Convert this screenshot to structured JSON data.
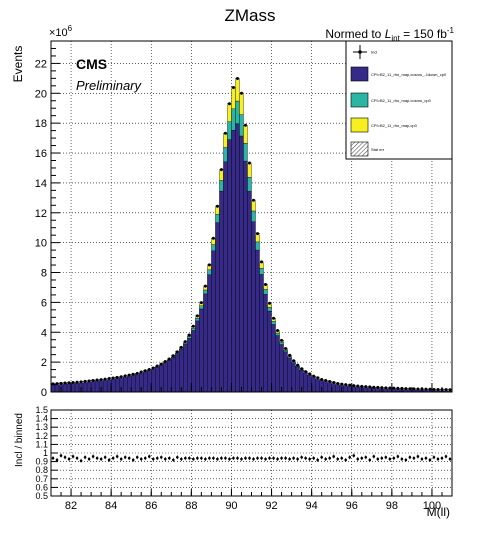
{
  "title": "ZMass",
  "lumi_label": {
    "prefix": "Normed to ",
    "L": "L",
    "sub": "int",
    "suffix": " = 150 fb",
    "sup": "-1"
  },
  "cms_label": "CMS",
  "preliminary_label": "Preliminary",
  "colors": {
    "navy": "#352a87",
    "teal": "#2bb5a4",
    "yellow": "#f7ef20",
    "grey": "#9a9a9a"
  },
  "chart_data": [
    {
      "type": "bar",
      "stacked": true,
      "ylabel": "Events",
      "y_multiplier": "×10",
      "y_multiplier_exp": "6",
      "xlim": [
        81,
        101
      ],
      "ylim": [
        0,
        23.5
      ],
      "grid": true,
      "legend_position": "top-right",
      "x_ticks": [
        "82",
        "84",
        "86",
        "88",
        "90",
        "92",
        "94",
        "96",
        "98",
        "100"
      ],
      "y_ticks": [
        "0",
        "2",
        "4",
        "6",
        "8",
        "10",
        "12",
        "14",
        "16",
        "18",
        "20",
        "22"
      ],
      "legend": [
        {
          "label": "Incl",
          "marker": "point"
        },
        {
          "label": "CPI=B2_11_rho_map,cosmu_-1down_cp0",
          "color": "#352a87"
        },
        {
          "label": "CPI=B2_11_rho_map,cosmu_cp0",
          "color": "#2bb5a4"
        },
        {
          "label": "CPI=B2_11_rho_map,cp0",
          "color": "#f7ef20"
        },
        {
          "label": "Stat err",
          "marker": "hatch"
        }
      ],
      "bin_width": 0.2,
      "x_centers": [
        81.1,
        81.3,
        81.5,
        81.7,
        81.9,
        82.1,
        82.3,
        82.5,
        82.7,
        82.9,
        83.1,
        83.3,
        83.5,
        83.7,
        83.9,
        84.1,
        84.3,
        84.5,
        84.7,
        84.9,
        85.1,
        85.3,
        85.5,
        85.7,
        85.9,
        86.1,
        86.3,
        86.5,
        86.7,
        86.9,
        87.1,
        87.3,
        87.5,
        87.7,
        87.9,
        88.1,
        88.3,
        88.5,
        88.7,
        88.9,
        89.1,
        89.3,
        89.5,
        89.7,
        89.9,
        90.1,
        90.3,
        90.5,
        90.7,
        90.9,
        91.1,
        91.3,
        91.5,
        91.7,
        91.9,
        92.1,
        92.3,
        92.5,
        92.7,
        92.9,
        93.1,
        93.3,
        93.5,
        93.7,
        93.9,
        94.1,
        94.3,
        94.5,
        94.7,
        94.9,
        95.1,
        95.3,
        95.5,
        95.7,
        95.9,
        96.1,
        96.3,
        96.5,
        96.7,
        96.9,
        97.1,
        97.3,
        97.5,
        97.7,
        97.9,
        98.1,
        98.3,
        98.5,
        98.7,
        98.9,
        99.1,
        99.3,
        99.5,
        99.7,
        99.9,
        100.1,
        100.3,
        100.5,
        100.7,
        100.9
      ],
      "series": [
        {
          "name": "CPI=B2_11_rho_map,cosmu_-1down_cp0",
          "values": [
            0.52,
            0.54,
            0.56,
            0.58,
            0.6,
            0.62,
            0.64,
            0.66,
            0.69,
            0.72,
            0.75,
            0.78,
            0.81,
            0.84,
            0.88,
            0.92,
            0.96,
            1.0,
            1.06,
            1.11,
            1.17,
            1.23,
            1.3,
            1.38,
            1.47,
            1.57,
            1.68,
            1.81,
            1.96,
            2.13,
            2.33,
            2.57,
            2.85,
            3.19,
            3.6,
            4.12,
            4.76,
            5.56,
            6.57,
            7.85,
            9.45,
            11.34,
            13.45,
            15.42,
            16.9,
            17.53,
            17.97,
            17.14,
            15.46,
            13.43,
            11.4,
            9.5,
            7.87,
            6.54,
            5.42,
            4.52,
            3.78,
            3.18,
            2.69,
            2.28,
            1.95,
            1.68,
            1.46,
            1.28,
            1.13,
            1.0,
            0.89,
            0.8,
            0.73,
            0.66,
            0.6,
            0.55,
            0.51,
            0.47,
            0.44,
            0.41,
            0.38,
            0.36,
            0.34,
            0.32,
            0.3,
            0.29,
            0.27,
            0.26,
            0.25,
            0.24,
            0.23,
            0.22,
            0.21,
            0.2,
            0.19,
            0.18,
            0.18,
            0.17,
            0.16,
            0.15,
            0.15,
            0.14,
            0.14,
            0.13
          ]
        },
        {
          "name": "CPI=B2_11_rho_map,cosmu_cp0",
          "values": [
            0.01,
            0.01,
            0.01,
            0.01,
            0.01,
            0.01,
            0.01,
            0.01,
            0.01,
            0.01,
            0.01,
            0.01,
            0.01,
            0.01,
            0.01,
            0.01,
            0.01,
            0.01,
            0.01,
            0.01,
            0.01,
            0.01,
            0.02,
            0.02,
            0.02,
            0.02,
            0.03,
            0.03,
            0.04,
            0.04,
            0.05,
            0.06,
            0.07,
            0.09,
            0.11,
            0.14,
            0.17,
            0.21,
            0.26,
            0.33,
            0.42,
            0.55,
            0.72,
            0.95,
            1.2,
            1.43,
            1.51,
            1.43,
            1.2,
            0.95,
            0.72,
            0.55,
            0.42,
            0.33,
            0.26,
            0.21,
            0.17,
            0.14,
            0.11,
            0.09,
            0.07,
            0.06,
            0.05,
            0.04,
            0.04,
            0.03,
            0.03,
            0.02,
            0.02,
            0.02,
            0.02,
            0.01,
            0.01,
            0.01,
            0.01,
            0.01,
            0.01,
            0.01,
            0.01,
            0.01,
            0.01,
            0.01,
            0.01,
            0.01,
            0.01,
            0.01,
            0.01,
            0.01,
            0.01,
            0.01,
            0.01,
            0.01,
            0.01,
            0.01,
            0.01,
            0.01,
            0.01,
            0.01,
            0.01,
            0.01
          ]
        },
        {
          "name": "CPI=B2_11_rho_map,cp0",
          "values": [
            0.01,
            0.01,
            0.01,
            0.01,
            0.01,
            0.01,
            0.01,
            0.01,
            0.01,
            0.01,
            0.01,
            0.01,
            0.01,
            0.01,
            0.01,
            0.01,
            0.01,
            0.01,
            0.01,
            0.01,
            0.01,
            0.01,
            0.02,
            0.02,
            0.02,
            0.02,
            0.03,
            0.03,
            0.04,
            0.04,
            0.05,
            0.06,
            0.07,
            0.09,
            0.11,
            0.14,
            0.17,
            0.21,
            0.26,
            0.33,
            0.42,
            0.55,
            0.72,
            0.95,
            1.2,
            1.43,
            1.51,
            1.43,
            1.2,
            0.95,
            0.72,
            0.55,
            0.42,
            0.33,
            0.26,
            0.21,
            0.17,
            0.14,
            0.11,
            0.09,
            0.07,
            0.06,
            0.05,
            0.04,
            0.04,
            0.03,
            0.03,
            0.02,
            0.02,
            0.02,
            0.02,
            0.01,
            0.01,
            0.01,
            0.01,
            0.01,
            0.01,
            0.01,
            0.01,
            0.01,
            0.01,
            0.01,
            0.01,
            0.01,
            0.01,
            0.01,
            0.01,
            0.01,
            0.01,
            0.01,
            0.01,
            0.01,
            0.01,
            0.01,
            0.01,
            0.01,
            0.01,
            0.01,
            0.01,
            0.01
          ]
        }
      ]
    },
    {
      "type": "scatter",
      "ylabel": "Incl / binned",
      "xlabel": "M(ll)",
      "xlim": [
        81,
        101
      ],
      "ylim": [
        0.5,
        1.5
      ],
      "grid": true,
      "x_ticks": [
        "82",
        "84",
        "86",
        "88",
        "90",
        "92",
        "94",
        "96",
        "98",
        "100"
      ],
      "y_ticks": [
        "0.5",
        "0.6",
        "0.7",
        "0.8",
        "0.9",
        "1",
        "1.1",
        "1.2",
        "1.3",
        "1.4",
        "1.5"
      ],
      "ratio_values": [
        0.94,
        0.92,
        0.97,
        0.95,
        0.93,
        0.96,
        0.94,
        0.91,
        0.95,
        0.93,
        0.96,
        0.94,
        0.93,
        0.95,
        0.92,
        0.94,
        0.96,
        0.93,
        0.95,
        0.94,
        0.92,
        0.95,
        0.93,
        0.94,
        0.96,
        0.93,
        0.94,
        0.95,
        0.93,
        0.94,
        0.92,
        0.95,
        0.93,
        0.94,
        0.94,
        0.93,
        0.94,
        0.94,
        0.93,
        0.94,
        0.94,
        0.93,
        0.94,
        0.94,
        0.93,
        0.94,
        0.94,
        0.93,
        0.94,
        0.94,
        0.93,
        0.94,
        0.94,
        0.93,
        0.94,
        0.94,
        0.93,
        0.94,
        0.94,
        0.93,
        0.94,
        0.93,
        0.95,
        0.94,
        0.93,
        0.94,
        0.92,
        0.95,
        0.93,
        0.94,
        0.96,
        0.93,
        0.94,
        0.92,
        0.95,
        0.97,
        0.93,
        0.94,
        0.95,
        0.92,
        0.96,
        0.93,
        0.94,
        0.95,
        0.93,
        0.94,
        0.96,
        0.93,
        0.92,
        0.95,
        0.94,
        0.96,
        0.93,
        0.94,
        0.92,
        0.95,
        0.93,
        0.94,
        0.96,
        0.93
      ]
    }
  ]
}
